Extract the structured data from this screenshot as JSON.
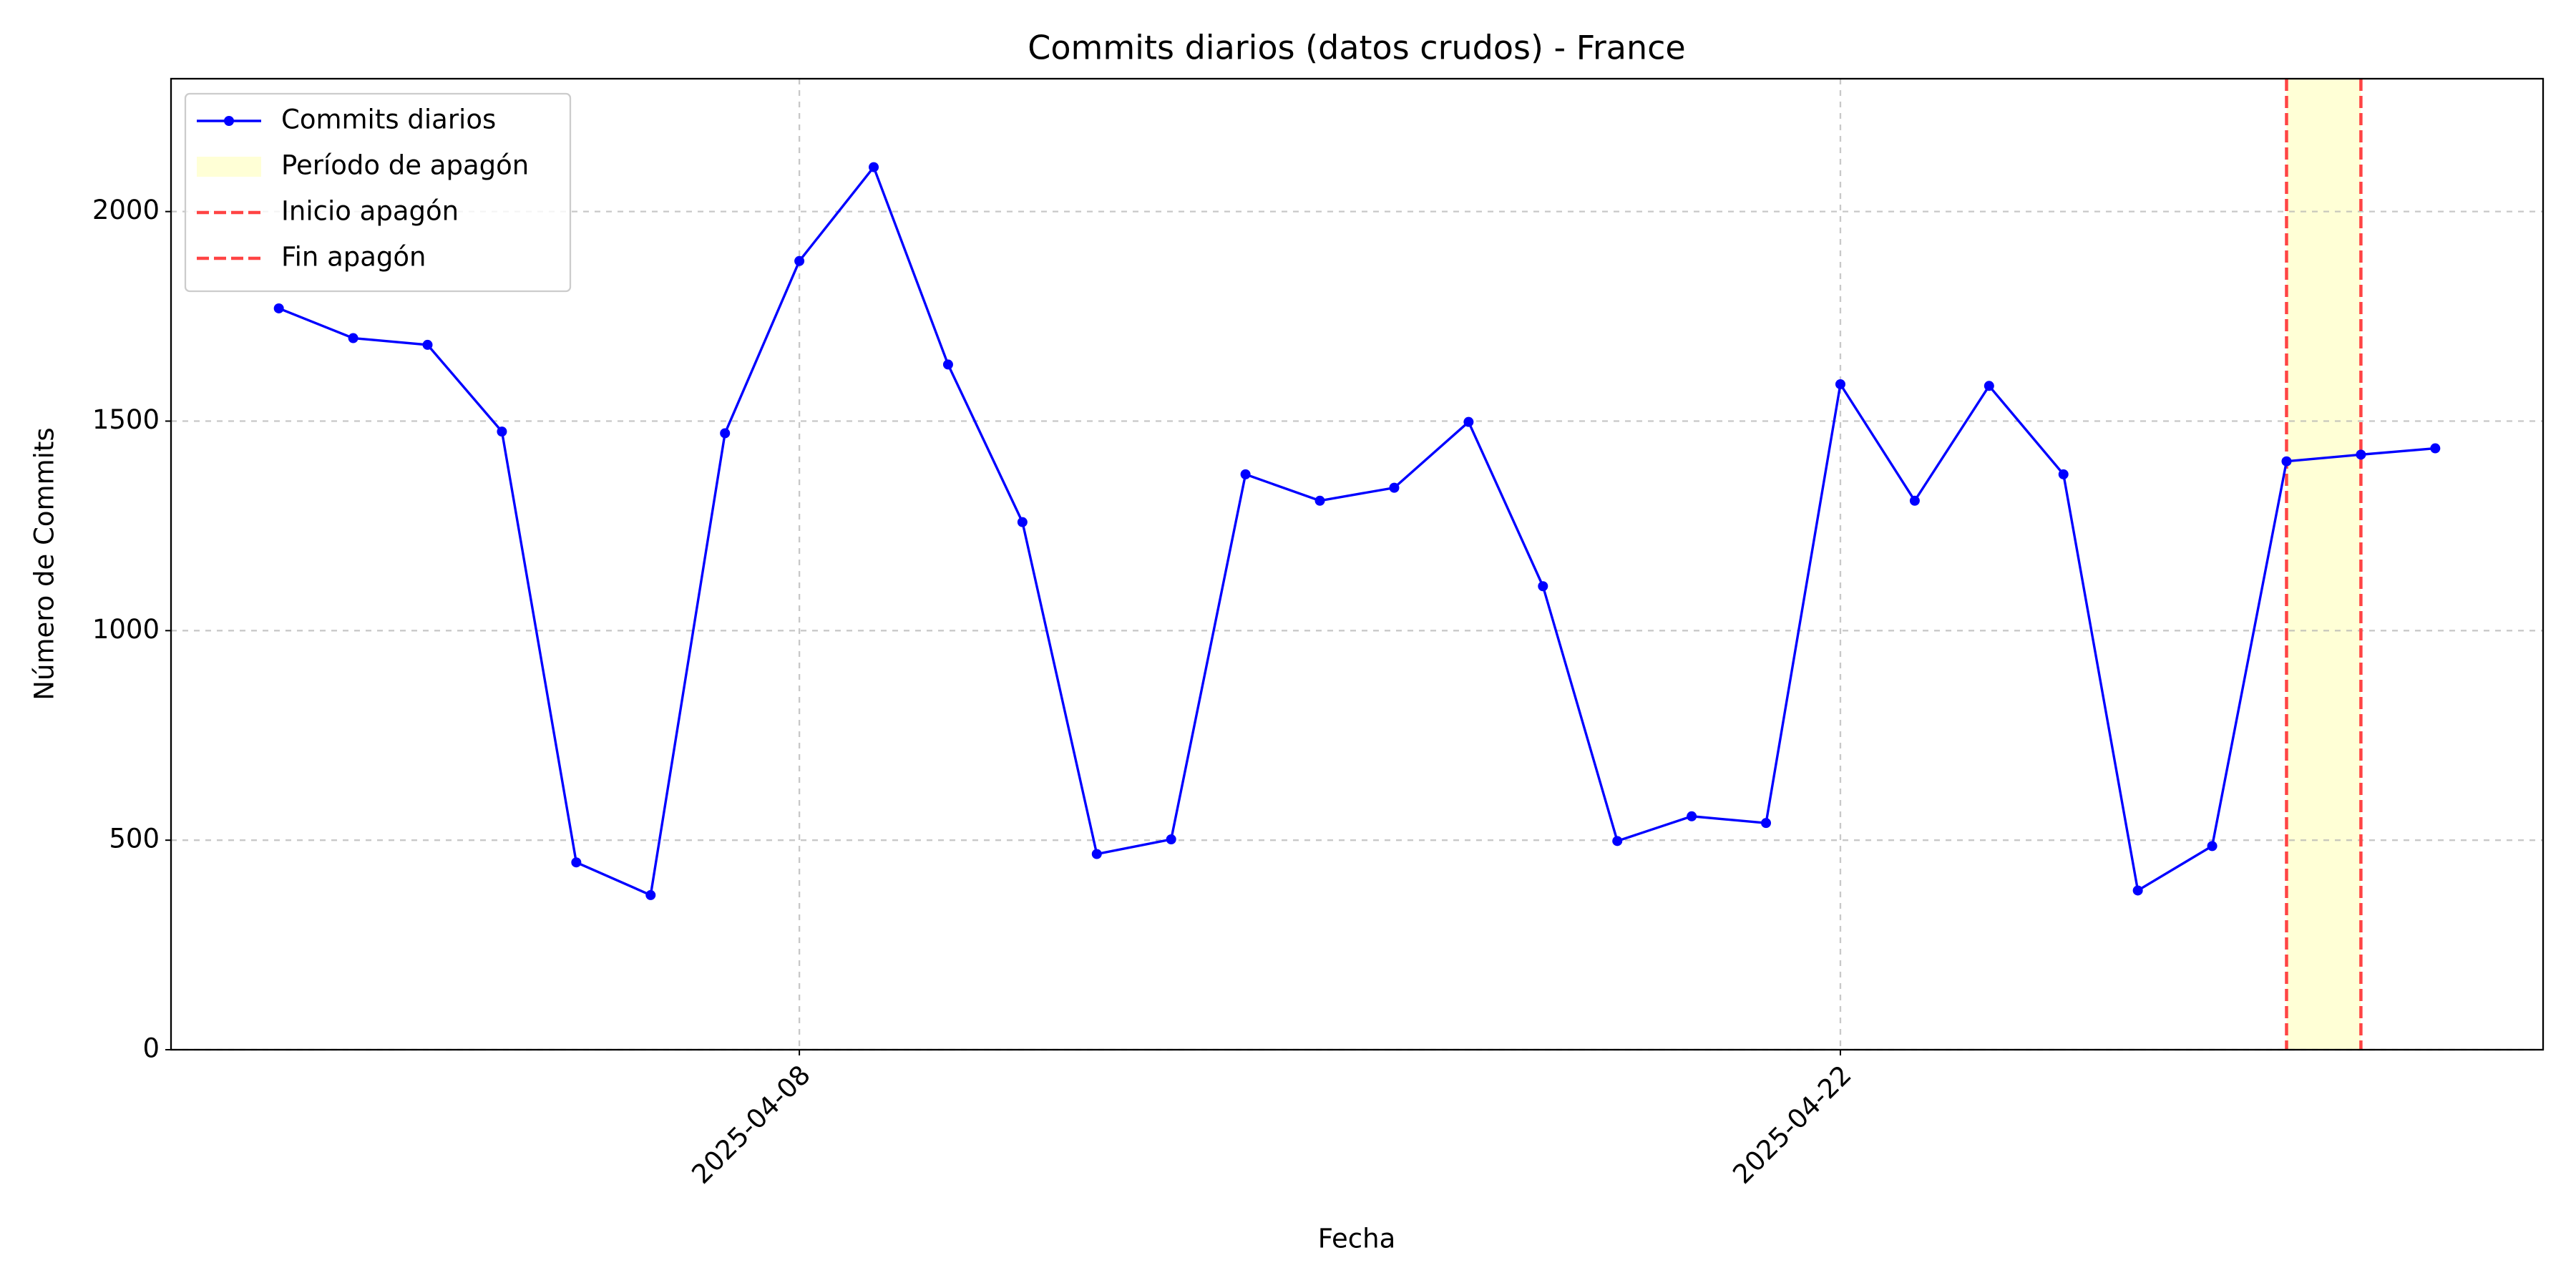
{
  "chart_data": {
    "type": "line",
    "title": "Commits diarios (datos crudos) - France",
    "x_label": "Fecha",
    "y_label": "Número de Commits",
    "x": [
      "2025-04-01",
      "2025-04-02",
      "2025-04-03",
      "2025-04-04",
      "2025-04-05",
      "2025-04-06",
      "2025-04-07",
      "2025-04-08",
      "2025-04-09",
      "2025-04-10",
      "2025-04-11",
      "2025-04-12",
      "2025-04-13",
      "2025-04-14",
      "2025-04-15",
      "2025-04-16",
      "2025-04-17",
      "2025-04-18",
      "2025-04-19",
      "2025-04-20",
      "2025-04-21",
      "2025-04-22",
      "2025-04-23",
      "2025-04-24",
      "2025-04-25",
      "2025-04-26",
      "2025-04-27",
      "2025-04-28",
      "2025-04-29",
      "2025-04-30"
    ],
    "series": [
      {
        "name": "Commits diarios",
        "color": "#0000ff",
        "values": [
          1769,
          1698,
          1682,
          1475,
          447,
          369,
          1471,
          1882,
          2106,
          1635,
          1259,
          467,
          502,
          1373,
          1310,
          1341,
          1498,
          1106,
          498,
          557,
          541,
          1588,
          1310,
          1584,
          1373,
          380,
          486,
          1404,
          1420,
          1435
        ]
      }
    ],
    "span": {
      "name": "Período de apagón",
      "color": "#ffffcc",
      "start": "2025-04-28",
      "end": "2025-04-29"
    },
    "vlines": [
      {
        "name": "Inicio apagón",
        "color": "#ff4444",
        "x": "2025-04-28"
      },
      {
        "name": "Fin apagón",
        "color": "#ff4444",
        "x": "2025-04-29"
      }
    ],
    "xlim": [
      "2025-03-30T13:12",
      "2025-05-01T10:48"
    ],
    "xticks": [
      "2025-04-08",
      "2025-04-22"
    ],
    "ylim": [
      0,
      2317
    ],
    "yticks": [
      0,
      500,
      1000,
      1500,
      2000
    ],
    "grid": true,
    "legend": "upper left"
  }
}
